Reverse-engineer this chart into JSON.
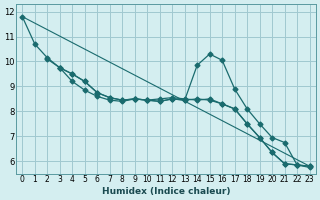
{
  "xlabel": "Humidex (Indice chaleur)",
  "ylabel": "",
  "background_color": "#d4eef0",
  "grid_color": "#a0c8d0",
  "line_color": "#1a6b6e",
  "xlim": [
    -0.5,
    23.5
  ],
  "ylim": [
    5.5,
    12.3
  ],
  "xtick_labels": [
    "0",
    "1",
    "2",
    "3",
    "4",
    "5",
    "6",
    "7",
    "8",
    "9",
    "10",
    "11",
    "12",
    "13",
    "14",
    "15",
    "16",
    "17",
    "18",
    "19",
    "20",
    "21",
    "22",
    "23"
  ],
  "ytick_values": [
    6,
    7,
    8,
    9,
    10,
    11,
    12
  ],
  "curves": [
    {
      "x": [
        0,
        1,
        2,
        3,
        4,
        5,
        6,
        7,
        8,
        9,
        10,
        11,
        12,
        13,
        14,
        15,
        16,
        17,
        18,
        19,
        20,
        21,
        22,
        23
      ],
      "y": [
        11.8,
        10.7,
        10.15,
        9.75,
        9.2,
        8.85,
        8.6,
        8.45,
        8.4,
        8.5,
        8.45,
        8.4,
        8.5,
        8.45,
        8.5,
        8.45,
        8.3,
        8.1,
        7.5,
        6.95,
        6.35,
        5.9,
        5.85,
        5.8
      ],
      "has_markers": true
    },
    {
      "x": [
        2,
        3,
        4,
        5,
        6,
        7,
        8,
        9,
        10,
        11,
        12,
        13,
        14,
        15,
        16,
        17,
        18,
        19,
        20,
        21,
        22,
        23
      ],
      "y": [
        10.1,
        9.75,
        9.5,
        9.2,
        8.75,
        8.55,
        8.45,
        8.5,
        8.45,
        8.4,
        8.5,
        8.45,
        9.85,
        10.3,
        10.05,
        8.9,
        8.1,
        7.5,
        6.95,
        6.75,
        5.85,
        5.75
      ],
      "has_markers": true
    },
    {
      "x": [
        3,
        4,
        5,
        6,
        7,
        8,
        9,
        10,
        11,
        12,
        13,
        14,
        15,
        16,
        17,
        18,
        19,
        20,
        21,
        22,
        23
      ],
      "y": [
        9.75,
        9.5,
        9.2,
        8.75,
        8.55,
        8.45,
        8.5,
        8.45,
        8.5,
        8.55,
        8.5,
        8.45,
        8.5,
        8.3,
        8.1,
        7.5,
        6.95,
        6.35,
        5.9,
        5.85,
        5.8
      ],
      "has_markers": true
    },
    {
      "x": [
        0,
        23
      ],
      "y": [
        11.8,
        5.8
      ],
      "has_markers": false
    }
  ]
}
